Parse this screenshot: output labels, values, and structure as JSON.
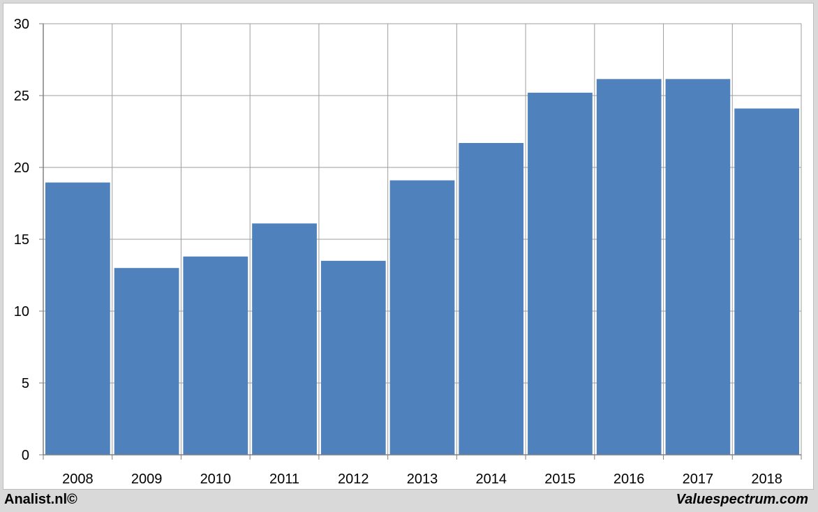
{
  "chart_data": {
    "type": "bar",
    "categories": [
      "2008",
      "2009",
      "2010",
      "2011",
      "2012",
      "2013",
      "2014",
      "2015",
      "2016",
      "2017",
      "2018"
    ],
    "values": [
      18.95,
      13.0,
      13.8,
      16.1,
      13.5,
      19.1,
      21.7,
      25.2,
      26.15,
      26.15,
      24.1
    ],
    "ylim": [
      0,
      30
    ],
    "yticks": [
      0,
      5,
      10,
      15,
      20,
      25,
      30
    ],
    "grid": true,
    "legend": "none",
    "bar_color": "#4f81bd",
    "grid_color": "#9e9e9e"
  },
  "footer": {
    "left": "Analist.nl©",
    "right": "Valuespectrum.com"
  }
}
